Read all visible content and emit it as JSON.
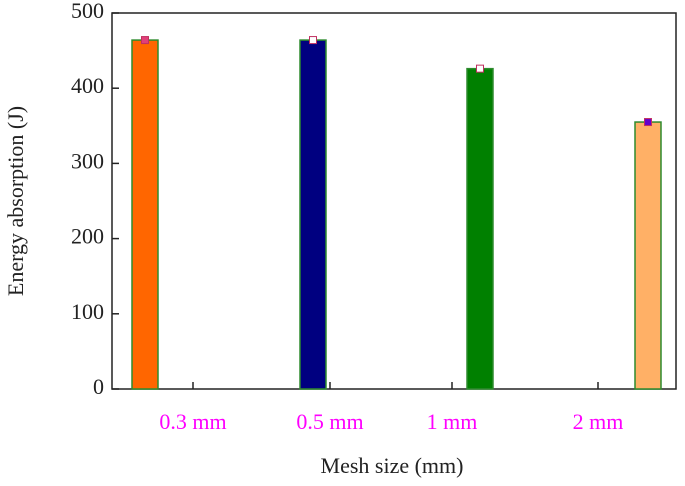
{
  "chart_data": {
    "type": "bar",
    "xlabel": "Mesh size (mm)",
    "ylabel": "Energy absorption (J)",
    "categories": [
      "0.3 mm",
      "0.5 mm",
      "1 mm",
      "2 mm"
    ],
    "values": [
      464,
      464,
      426,
      355
    ],
    "colors": [
      "#ff6600",
      "#000080",
      "#008000",
      "#ffb066"
    ],
    "marker_colors": [
      "#e0407a",
      "#ffffff",
      "#ffffff",
      "#6600cc"
    ],
    "edge_color": "#2e8b2e",
    "ylim": [
      0,
      500
    ],
    "yticks": [
      0,
      100,
      200,
      300,
      400,
      500
    ],
    "grid": false
  }
}
